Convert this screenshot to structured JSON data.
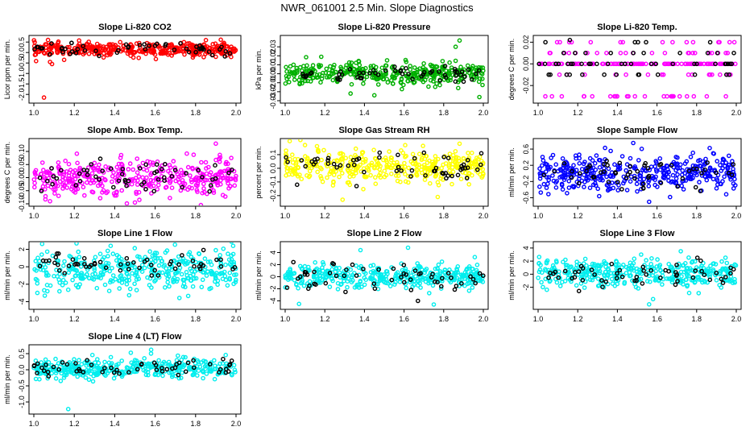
{
  "page": {
    "title": "NWR_061001  2.5 Min. Slope Diagnostics",
    "x_ticks": [
      "1.0",
      "1.2",
      "1.4",
      "1.6",
      "1.8",
      "2.0"
    ]
  },
  "chart_data": [
    {
      "type": "scatter",
      "title": "Slope Li-820 CO2",
      "ylabel": "Licor ppm per min.",
      "color": "#ff0000",
      "xlim": [
        1.0,
        2.0
      ],
      "ylim": [
        -2.3,
        0.7
      ],
      "y_ticks": [
        {
          "v": 0.5,
          "label": "0.5"
        },
        {
          "v": 0.0,
          "label": "0.0"
        },
        {
          "v": -0.5,
          "label": "-0.5"
        },
        {
          "v": -1.0,
          "label": "-1.0"
        },
        {
          "v": -1.5,
          "label": "-1.5"
        },
        {
          "v": -2.0,
          "label": "-2.0"
        }
      ],
      "series": [
        {
          "name": "main",
          "n": 380,
          "center": 0.15,
          "spread": 0.16,
          "outliers": [
            [
              1.05,
              -2.15
            ],
            [
              1.08,
              -0.45
            ],
            [
              1.09,
              -0.55
            ],
            [
              1.15,
              -0.35
            ],
            [
              1.07,
              0.6
            ]
          ]
        },
        {
          "name": "black",
          "n": 55,
          "center": 0.15,
          "spread": 0.13,
          "outliers": []
        }
      ]
    },
    {
      "type": "scatter",
      "title": "Slope Li-820 Pressure",
      "ylabel": "kPa per min.",
      "color": "#00b000",
      "xlim": [
        1.0,
        2.0
      ],
      "ylim": [
        -0.03,
        0.04
      ],
      "y_ticks": [
        {
          "v": 0.03,
          "label": "0.03"
        },
        {
          "v": 0.02,
          "label": "0.02"
        },
        {
          "v": 0.01,
          "label": "0.01"
        },
        {
          "v": 0.0,
          "label": "0.00"
        },
        {
          "v": -0.01,
          "label": "-0.01"
        },
        {
          "v": -0.02,
          "label": "-0.02"
        },
        {
          "v": -0.03,
          "label": "-0.03"
        }
      ],
      "series": [
        {
          "name": "main",
          "n": 380,
          "center": 0.0,
          "spread": 0.006,
          "outliers": [
            [
              1.88,
              0.037
            ],
            [
              1.86,
              0.03
            ],
            [
              1.45,
              -0.024
            ],
            [
              1.33,
              -0.022
            ],
            [
              1.98,
              -0.026
            ]
          ]
        },
        {
          "name": "black",
          "n": 55,
          "center": 0.0,
          "spread": 0.005,
          "outliers": []
        }
      ]
    },
    {
      "type": "scatter",
      "title": "Slope Li-820 Temp.",
      "ylabel": "degrees C per min.",
      "color": "#ff00ff",
      "xlim": [
        1.0,
        2.0
      ],
      "ylim": [
        -0.034,
        0.024
      ],
      "y_ticks": [
        {
          "v": 0.02,
          "label": "0.02"
        },
        {
          "v": 0.0,
          "label": "0.00"
        },
        {
          "v": -0.02,
          "label": "-0.02"
        }
      ],
      "series": [
        {
          "name": "main",
          "n": 200,
          "center": 0.0,
          "spread": 0.0,
          "discrete": [
            0.01,
            -0.01,
            -0.03,
            0.02
          ],
          "outliers": [
            [
              1.07,
              -0.03
            ]
          ]
        },
        {
          "name": "black",
          "n": 55,
          "center": 0.0,
          "spread": 0.0,
          "discrete": [
            0.01,
            -0.01,
            0.02
          ],
          "outliers": [
            [
              1.16,
              0.022
            ]
          ]
        }
      ]
    },
    {
      "type": "scatter",
      "title": "Slope Amb. Box Temp.",
      "ylabel": "degrees C per min.",
      "color": "#ff00ff",
      "xlim": [
        1.0,
        2.0
      ],
      "ylim": [
        -0.1,
        0.14
      ],
      "y_ticks": [
        {
          "v": 0.1,
          "label": "0.10"
        },
        {
          "v": 0.05,
          "label": "0.05"
        },
        {
          "v": 0.0,
          "label": "0.00"
        },
        {
          "v": -0.05,
          "label": "-0.05"
        },
        {
          "v": -0.1,
          "label": "-0.10"
        }
      ],
      "series": [
        {
          "name": "main",
          "n": 380,
          "center": 0.0,
          "spread": 0.035,
          "outliers": [
            [
              1.9,
              0.13
            ],
            [
              1.08,
              -0.09
            ],
            [
              1.5,
              -0.095
            ]
          ]
        },
        {
          "name": "black",
          "n": 55,
          "center": 0.0,
          "spread": 0.03,
          "outliers": []
        }
      ]
    },
    {
      "type": "scatter",
      "title": "Slope Gas Stream RH",
      "ylabel": "percent per min.",
      "color": "#ffff00",
      "xlim": [
        1.0,
        2.0
      ],
      "ylim": [
        -0.26,
        0.2
      ],
      "y_ticks": [
        {
          "v": 0.1,
          "label": "0.1"
        },
        {
          "v": 0.0,
          "label": "0.0"
        },
        {
          "v": -0.1,
          "label": "-0.1"
        },
        {
          "v": -0.2,
          "label": "-0.2"
        }
      ],
      "series": [
        {
          "name": "main",
          "n": 380,
          "center": 0.02,
          "spread": 0.055,
          "outliers": [
            [
              1.29,
              -0.23
            ],
            [
              1.77,
              -0.21
            ],
            [
              1.1,
              0.17
            ],
            [
              1.88,
              0.18
            ]
          ]
        },
        {
          "name": "black",
          "n": 55,
          "center": 0.02,
          "spread": 0.05,
          "outliers": [
            [
              1.06,
              -0.12
            ],
            [
              1.99,
              0.11
            ]
          ]
        }
      ]
    },
    {
      "type": "scatter",
      "title": "Slope Sample Flow",
      "ylabel": "ml/min per min.",
      "color": "#0000ff",
      "xlim": [
        1.0,
        2.0
      ],
      "ylim": [
        -0.75,
        0.8
      ],
      "y_ticks": [
        {
          "v": 0.6,
          "label": "0.6"
        },
        {
          "v": 0.2,
          "label": "0.2"
        },
        {
          "v": -0.2,
          "label": "-0.2"
        },
        {
          "v": -0.6,
          "label": "-0.6"
        }
      ],
      "series": [
        {
          "name": "main",
          "n": 380,
          "center": 0.0,
          "spread": 0.22,
          "outliers": [
            [
              1.48,
              0.75
            ],
            [
              1.56,
              -0.7
            ]
          ]
        },
        {
          "name": "black",
          "n": 55,
          "center": 0.0,
          "spread": 0.17,
          "outliers": []
        }
      ]
    },
    {
      "type": "scatter",
      "title": "Slope Line 1 Flow",
      "ylabel": "ml/min per min.",
      "color": "#00eeee",
      "xlim": [
        1.0,
        2.0
      ],
      "ylim": [
        -4.6,
        2.6
      ],
      "y_ticks": [
        {
          "v": 2,
          "label": "2"
        },
        {
          "v": 0,
          "label": "0"
        },
        {
          "v": -2,
          "label": "-2"
        },
        {
          "v": -4,
          "label": "-4"
        }
      ],
      "series": [
        {
          "name": "main",
          "n": 380,
          "center": -0.4,
          "spread": 1.2,
          "outliers": [
            [
              1.38,
              2.4
            ],
            [
              1.9,
              1.9
            ]
          ]
        },
        {
          "name": "black",
          "n": 55,
          "center": 0.2,
          "spread": 0.45,
          "outliers": []
        }
      ]
    },
    {
      "type": "scatter",
      "title": "Slope Line 2 Flow",
      "ylabel": "ml/min per min.",
      "color": "#00eeee",
      "xlim": [
        1.0,
        2.0
      ],
      "ylim": [
        -5.0,
        5.4
      ],
      "y_ticks": [
        {
          "v": 4,
          "label": "4"
        },
        {
          "v": 2,
          "label": "2"
        },
        {
          "v": 0,
          "label": "0"
        },
        {
          "v": -2,
          "label": "-2"
        },
        {
          "v": -4,
          "label": "-4"
        }
      ],
      "series": [
        {
          "name": "main",
          "n": 380,
          "center": 0.1,
          "spread": 0.95,
          "outliers": [
            [
              1.62,
              4.8
            ],
            [
              1.38,
              4.4
            ],
            [
              1.07,
              -4.5
            ],
            [
              1.75,
              -4.6
            ]
          ]
        },
        {
          "name": "black",
          "n": 55,
          "center": 0.0,
          "spread": 1.3,
          "outliers": [
            [
              1.67,
              -4.0
            ]
          ]
        }
      ]
    },
    {
      "type": "scatter",
      "title": "Slope Line 3 Flow",
      "ylabel": "ml/min per min.",
      "color": "#00eeee",
      "xlim": [
        1.0,
        2.0
      ],
      "ylim": [
        -5.0,
        4.6
      ],
      "y_ticks": [
        {
          "v": 4,
          "label": "4"
        },
        {
          "v": 2,
          "label": "2"
        },
        {
          "v": 0,
          "label": "0"
        },
        {
          "v": -2,
          "label": "-2"
        }
      ],
      "series": [
        {
          "name": "main",
          "n": 380,
          "center": 0.2,
          "spread": 1.0,
          "outliers": [
            [
              1.56,
              -4.6
            ],
            [
              1.58,
              -3.8
            ],
            [
              1.72,
              3.5
            ],
            [
              1.52,
              3.0
            ],
            [
              1.81,
              -2.9
            ]
          ]
        },
        {
          "name": "black",
          "n": 55,
          "center": 0.0,
          "spread": 0.9,
          "outliers": []
        }
      ]
    },
    {
      "type": "scatter",
      "title": "Slope Line 4 (LT) Flow",
      "ylabel": "ml/min per min.",
      "color": "#00eeee",
      "xlim": [
        1.0,
        2.0
      ],
      "ylim": [
        -1.3,
        0.7
      ],
      "y_ticks": [
        {
          "v": 0.5,
          "label": "0.5"
        },
        {
          "v": 0.0,
          "label": "0.0"
        },
        {
          "v": -0.5,
          "label": "-0.5"
        },
        {
          "v": -1.0,
          "label": "-1.0"
        }
      ],
      "series": [
        {
          "name": "main",
          "n": 380,
          "center": 0.05,
          "spread": 0.15,
          "outliers": [
            [
              1.17,
              -1.22
            ],
            [
              1.58,
              0.62
            ]
          ]
        },
        {
          "name": "black",
          "n": 55,
          "center": 0.05,
          "spread": 0.12,
          "outliers": []
        }
      ]
    }
  ]
}
